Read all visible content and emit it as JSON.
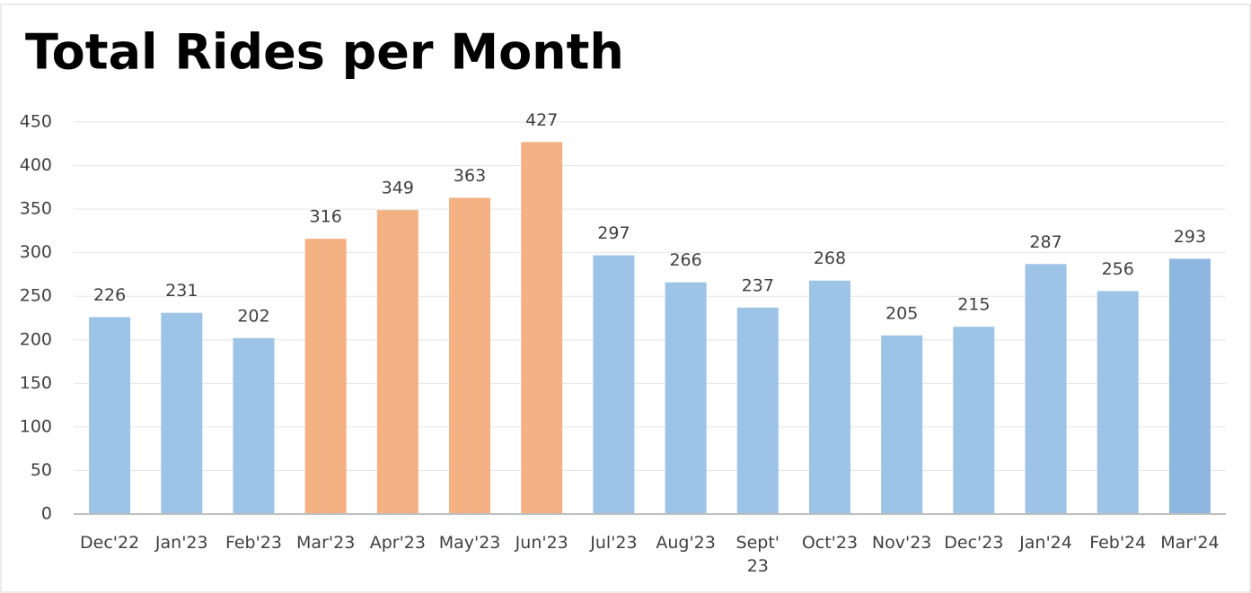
{
  "chart_data": {
    "type": "bar",
    "title": "Total Rides per Month",
    "categories": [
      "Dec'22",
      "Jan'23",
      "Feb'23",
      "Mar'23",
      "Apr'23",
      "May'23",
      "Jun'23",
      "Jul'23",
      "Aug'23",
      "Sept'\n23",
      "Oct'23",
      "Nov'23",
      "Dec'23",
      "Jan'24",
      "Feb'24",
      "Mar'24"
    ],
    "values": [
      226,
      231,
      202,
      316,
      349,
      363,
      427,
      297,
      266,
      237,
      268,
      205,
      215,
      287,
      256,
      293
    ],
    "colors": [
      "#9dc3e6",
      "#9dc3e6",
      "#9dc3e6",
      "#f4b183",
      "#f4b183",
      "#f4b183",
      "#f4b183",
      "#9dc3e6",
      "#9dc3e6",
      "#9dc3e6",
      "#9dc3e6",
      "#9dc3e6",
      "#9dc3e6",
      "#9dc3e6",
      "#9dc3e6",
      "#8db7e0"
    ],
    "ylim": [
      0,
      450
    ],
    "yticks": [
      0,
      50,
      100,
      150,
      200,
      250,
      300,
      350,
      400,
      450
    ],
    "grid": true
  }
}
